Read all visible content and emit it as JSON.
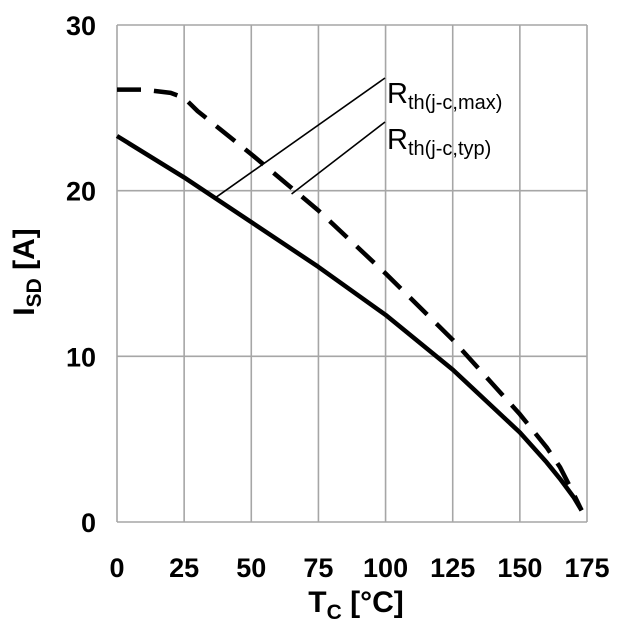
{
  "chart_data": {
    "type": "line",
    "xlabel": {
      "main": "T",
      "sub": "C",
      "unit": " [°C]"
    },
    "ylabel": {
      "main": "I",
      "sub": "SD",
      "unit": " [A]"
    },
    "xlim": [
      0,
      175
    ],
    "ylim": [
      0,
      30
    ],
    "xticks": [
      "0",
      "25",
      "50",
      "75",
      "100",
      "125",
      "150",
      "175"
    ],
    "yticks": [
      "0",
      "10",
      "20",
      "30"
    ],
    "x_gridlines": [
      0,
      25,
      50,
      75,
      100,
      125,
      150,
      175
    ],
    "y_gridlines": [
      0,
      10,
      20,
      30
    ],
    "grid": true,
    "series": [
      {
        "name": "Rth(j-c,typ)",
        "style": "dashed",
        "color": "#000000",
        "x": [
          0,
          10,
          20,
          25,
          30,
          50,
          75,
          100,
          125,
          150,
          160,
          165,
          170,
          173
        ],
        "y": [
          26.1,
          26.1,
          25.9,
          25.6,
          24.8,
          22.2,
          18.8,
          15.0,
          11.0,
          6.5,
          4.5,
          3.3,
          1.7,
          0.7
        ]
      },
      {
        "name": "Rth(j-c,max)",
        "style": "solid",
        "color": "#000000",
        "x": [
          0,
          25,
          50,
          75,
          100,
          125,
          150,
          160,
          165,
          170,
          173
        ],
        "y": [
          23.3,
          20.8,
          18.1,
          15.4,
          12.5,
          9.2,
          5.4,
          3.6,
          2.6,
          1.5,
          0.7
        ]
      }
    ],
    "annotations": [
      {
        "main": "R",
        "sub": "th(j-c,max)",
        "series": "Rth(j-c,max)",
        "point_x": 36,
        "point_y": 19.5
      },
      {
        "main": "R",
        "sub": "th(j-c,typ)",
        "series": "Rth(j-c,typ)",
        "point_x": 65,
        "point_y": 19.8
      }
    ]
  }
}
